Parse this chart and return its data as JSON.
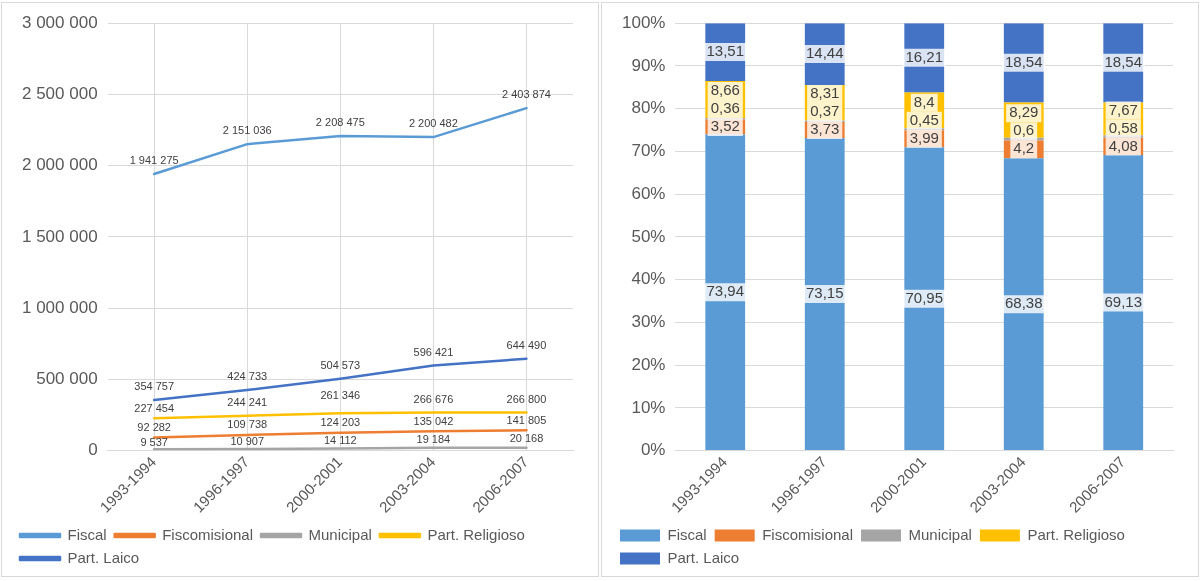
{
  "chart_data": [
    {
      "type": "line",
      "categories": [
        "1993-1994",
        "1996-1997",
        "2000-2001",
        "2003-2004",
        "2006-2007"
      ],
      "series": [
        {
          "name": "Fiscal",
          "color": "#5b9bd5",
          "values": [
            1941275,
            2151036,
            2208475,
            2200482,
            2403874
          ],
          "value_labels": [
            "1 941 275",
            "2 151 036",
            "2 208 475",
            "2 200 482",
            "2 403 874"
          ]
        },
        {
          "name": "Fiscomisional",
          "color": "#ed7d31",
          "values": [
            92282,
            109738,
            124203,
            135042,
            141805
          ],
          "value_labels": [
            "92 282",
            "109 738",
            "124 203",
            "135 042",
            "141 805"
          ]
        },
        {
          "name": "Municipal",
          "color": "#a5a5a5",
          "values": [
            9537,
            10907,
            14112,
            19184,
            20168
          ],
          "value_labels": [
            "9 537",
            "10 907",
            "14 112",
            "19 184",
            "20 168"
          ]
        },
        {
          "name": "Part. Religioso",
          "color": "#ffc000",
          "values": [
            227454,
            244241,
            261346,
            266676,
            266800
          ],
          "value_labels": [
            "227 454",
            "244 241",
            "261 346",
            "266 676",
            "266 800"
          ]
        },
        {
          "name": "Part. Laico",
          "color": "#4472c4",
          "values": [
            354757,
            424733,
            504573,
            596421,
            644490
          ],
          "value_labels": [
            "354 757",
            "424 733",
            "504 573",
            "596 421",
            "644 490"
          ]
        }
      ],
      "ylim": [
        0,
        3000000
      ],
      "yticks": [
        0,
        {
          "value": 500000,
          "label": "500 000"
        },
        {
          "value": 1000000,
          "label": "1 000 000"
        },
        {
          "value": 1500000,
          "label": "1 500 000"
        },
        {
          "value": 2000000,
          "label": "2 000 000"
        },
        {
          "value": 2500000,
          "label": "2 500 000"
        },
        {
          "value": 3000000,
          "label": "3 000 000"
        }
      ],
      "grid": true,
      "legend": "bottom",
      "marker": "none",
      "line_style": "solid"
    },
    {
      "type": "bar",
      "stacked": true,
      "categories": [
        "1993-1994",
        "1996-1997",
        "2000-2001",
        "2003-2004",
        "2006-2007"
      ],
      "series": [
        {
          "name": "Fiscal",
          "color": "#5b9bd5",
          "values": [
            73.94,
            73.15,
            70.95,
            68.38,
            69.13
          ],
          "value_labels": [
            "73,94",
            "73,15",
            "70,95",
            "68,38",
            "69,13"
          ]
        },
        {
          "name": "Fiscomisional",
          "color": "#ed7d31",
          "values": [
            3.52,
            3.73,
            3.99,
            4.2,
            4.08
          ],
          "value_labels": [
            "3,52",
            "3,73",
            "3,99",
            "4,2",
            "4,08"
          ]
        },
        {
          "name": "Municipal",
          "color": "#a5a5a5",
          "values": [
            0.36,
            0.37,
            0.45,
            0.6,
            0.58
          ],
          "value_labels": [
            "0,36",
            "0,37",
            "0,45",
            "0,6",
            "0,58"
          ]
        },
        {
          "name": "Part. Religioso",
          "color": "#ffc000",
          "values": [
            8.66,
            8.31,
            8.4,
            8.29,
            7.67
          ],
          "value_labels": [
            "8,66",
            "8,31",
            "8,4",
            "8,29",
            "7,67"
          ]
        },
        {
          "name": "Part. Laico",
          "color": "#4472c4",
          "values": [
            13.51,
            14.44,
            16.21,
            18.54,
            18.54
          ],
          "value_labels": [
            "13,51",
            "14,44",
            "16,21",
            "18,54",
            "18,54"
          ]
        }
      ],
      "ylim": [
        0,
        100
      ],
      "yticks": [
        {
          "value": 0,
          "label": "0%"
        },
        {
          "value": 10,
          "label": "10%"
        },
        {
          "value": 20,
          "label": "20%"
        },
        {
          "value": 30,
          "label": "30%"
        },
        {
          "value": 40,
          "label": "40%"
        },
        {
          "value": 50,
          "label": "50%"
        },
        {
          "value": 60,
          "label": "60%"
        },
        {
          "value": 70,
          "label": "70%"
        },
        {
          "value": 80,
          "label": "80%"
        },
        {
          "value": 90,
          "label": "90%"
        },
        {
          "value": 100,
          "label": "100%"
        }
      ],
      "grid": "y",
      "legend": "bottom"
    }
  ]
}
